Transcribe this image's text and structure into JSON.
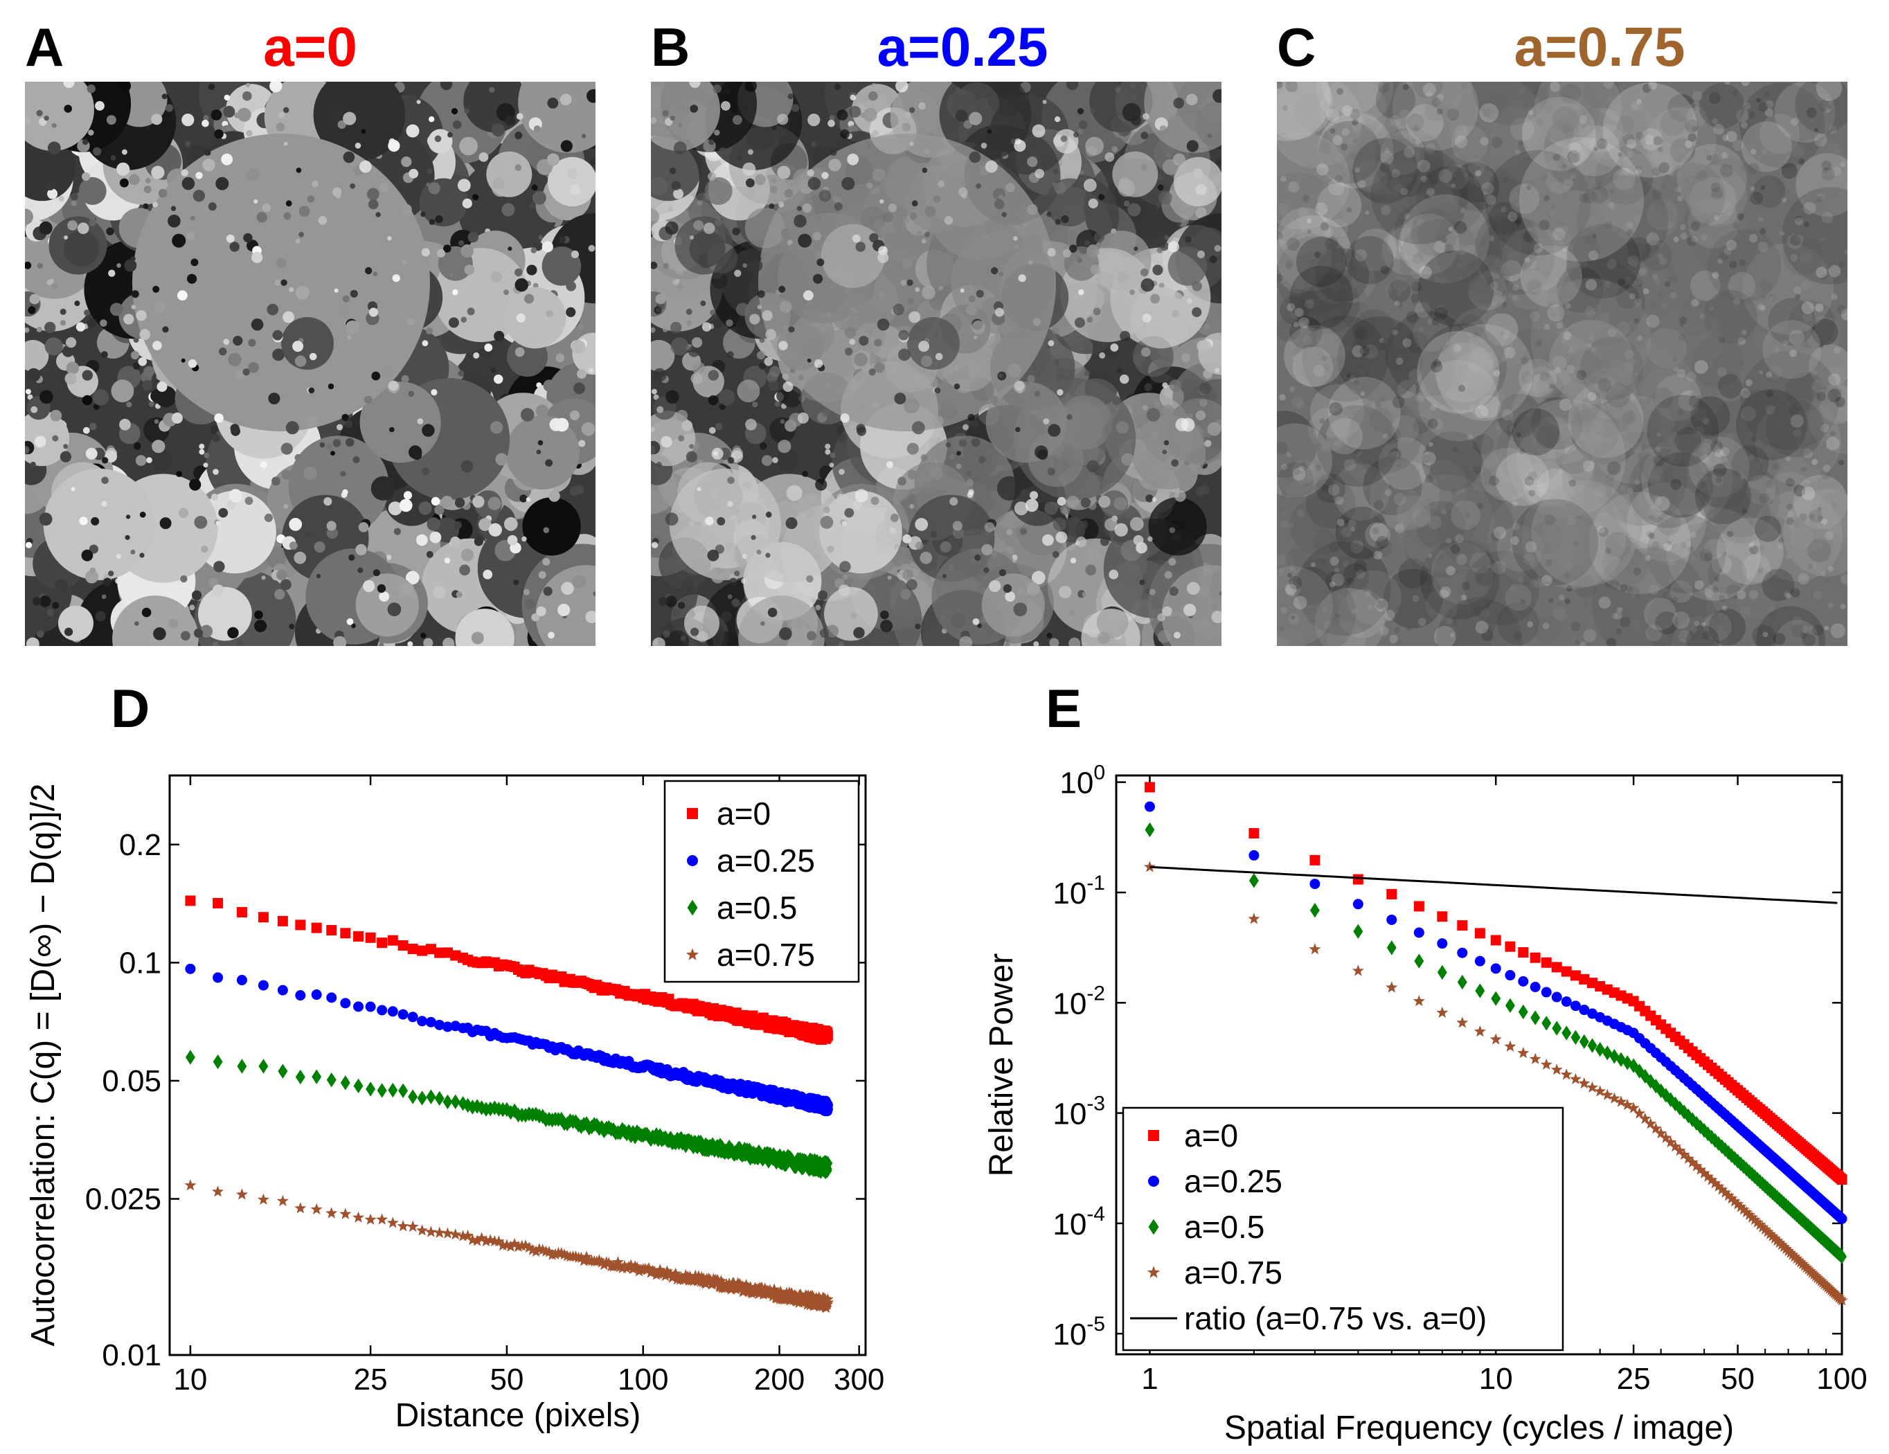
{
  "panels_top": [
    {
      "letter": "A",
      "title": "a=0",
      "title_color": "#ff0000",
      "a": 0,
      "seed": 11,
      "blend": 1.0,
      "bg": "#3a3a3a"
    },
    {
      "letter": "B",
      "title": "a=0.25",
      "title_color": "#0000ff",
      "a": 0.25,
      "seed": 11,
      "blend": 0.75,
      "bg": "#3a3a3a"
    },
    {
      "letter": "C",
      "title": "a=0.75",
      "title_color": "#a0642d",
      "a": 0.75,
      "seed": 37,
      "blend": 0.25,
      "bg": "#6e6e6e"
    }
  ],
  "series_colors": {
    "a0": "#ff0000",
    "a025": "#0000ff",
    "a05": "#008000",
    "a075": "#a0522d",
    "ratio": "#000000"
  },
  "chart_data": [
    {
      "panel": "D",
      "type": "scatter",
      "scale": "log-log",
      "xlabel": "Distance (pixels)",
      "ylabel": "Autocorrelation: C(q) = [D(∞) − D(q)]/2",
      "xlim": [
        9,
        310
      ],
      "ylim": [
        0.01,
        0.3
      ],
      "xticks": [
        10,
        25,
        50,
        100,
        200,
        300
      ],
      "xtick_labels": [
        "10",
        "25",
        "50",
        "100",
        "200",
        "300"
      ],
      "yticks": [
        0.01,
        0.025,
        0.05,
        0.1,
        0.2
      ],
      "ytick_labels": [
        "0.01",
        "0.025",
        "0.05",
        "0.1",
        "0.2"
      ],
      "legend_position": "top-right",
      "x_range": [
        10,
        256
      ],
      "series": [
        {
          "name": "a=0",
          "marker": "square",
          "color": "#ff0000",
          "y_at_10": 0.145,
          "y_at_256": 0.065
        },
        {
          "name": "a=0.25",
          "marker": "circle",
          "color": "#0000ff",
          "y_at_10": 0.096,
          "y_at_256": 0.043
        },
        {
          "name": "a=0.5",
          "marker": "diamond",
          "color": "#008000",
          "y_at_10": 0.058,
          "y_at_256": 0.03
        },
        {
          "name": "a=0.75",
          "marker": "star",
          "color": "#a0522d",
          "y_at_10": 0.027,
          "y_at_256": 0.0135
        }
      ]
    },
    {
      "panel": "E",
      "type": "scatter",
      "scale": "log-log",
      "xlabel": "Spatial Frequency (cycles / image)",
      "ylabel": "Relative Power",
      "xlim": [
        0.8,
        100
      ],
      "ylim": [
        6.5e-06,
        1.15
      ],
      "xticks": [
        1,
        10,
        25,
        50,
        100
      ],
      "xtick_labels": [
        "1",
        "10",
        "25",
        "50",
        "100"
      ],
      "yticks": [
        1,
        0.1,
        0.01,
        0.001,
        0.0001,
        1e-05
      ],
      "ytick_labels": [
        [
          "10",
          "0"
        ],
        [
          "10",
          "-1"
        ],
        [
          "10",
          "-2"
        ],
        [
          "10",
          "-3"
        ],
        [
          "10",
          "-4"
        ],
        [
          "10",
          "-5"
        ]
      ],
      "legend_position": "bottom-left",
      "series": [
        {
          "name": "a=0",
          "marker": "square",
          "color": "#ff0000",
          "y_at_1": 0.9,
          "y_at_100": 0.00025,
          "bend_f": 25,
          "slope_low": -1.55,
          "slope_high": -3.0
        },
        {
          "name": "a=0.25",
          "marker": "circle",
          "color": "#0000ff",
          "y_at_1": 0.6,
          "y_at_100": 0.00011,
          "bend_f": 25,
          "slope_low": -1.6,
          "slope_high": -3.05
        },
        {
          "name": "a=0.5",
          "marker": "diamond",
          "color": "#008000",
          "y_at_1": 0.37,
          "y_at_100": 5e-05,
          "bend_f": 25,
          "slope_low": -1.65,
          "slope_high": -3.1
        },
        {
          "name": "a=0.75",
          "marker": "star",
          "color": "#a0522d",
          "y_at_1": 0.17,
          "y_at_100": 2e-05,
          "bend_f": 25,
          "slope_low": -1.7,
          "slope_high": -3.15
        },
        {
          "name": "ratio (a=0.75 vs. a=0)",
          "marker": "line",
          "color": "#000000",
          "y_at_1": 0.17,
          "y_at_100": 0.08
        }
      ]
    }
  ]
}
